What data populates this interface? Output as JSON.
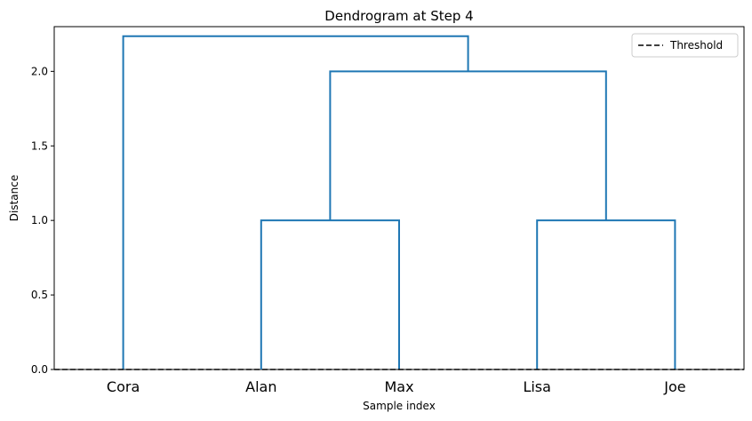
{
  "chart_data": {
    "type": "dendrogram",
    "title": "Dendrogram at Step 4",
    "xlabel": "Sample index",
    "ylabel": "Distance",
    "leaves": [
      "Cora",
      "Alan",
      "Max",
      "Lisa",
      "Joe"
    ],
    "ylim": [
      0,
      2.3
    ],
    "yticks": [
      "0.0",
      "0.5",
      "1.0",
      "1.5",
      "2.0"
    ],
    "merges": [
      {
        "left": "Alan",
        "right": "Max",
        "height": 1.0
      },
      {
        "left": "Lisa",
        "right": "Joe",
        "height": 1.0
      },
      {
        "left": "Alan+Max",
        "right": "Lisa+Joe",
        "height": 2.0
      },
      {
        "left": "Cora",
        "right": "Alan+Max+Lisa+Joe",
        "height": 2.236
      }
    ],
    "threshold": {
      "label": "Threshold",
      "value": 0.0,
      "style": "dashed"
    },
    "legend_position": "top-right",
    "colors": {
      "link": "#1f77b4",
      "threshold": "#000000"
    }
  }
}
